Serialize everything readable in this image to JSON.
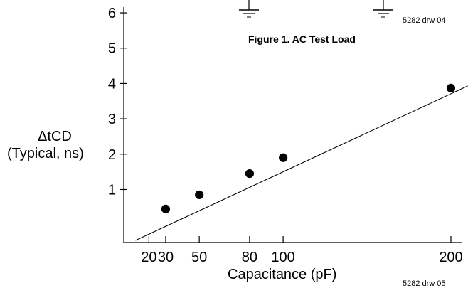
{
  "figure_caption": "Figure 1. AC Test Load",
  "drawing_ref_top": "5282 drw 04",
  "drawing_ref_bottom": "5282 drw 05",
  "chart_data": {
    "type": "scatter",
    "xlabel": "Capacitance (pF)",
    "ylabel_line1": "ΔtCD",
    "ylabel_line2": "(Typical, ns)",
    "xlim": [
      5,
      210
    ],
    "ylim": [
      -0.5,
      6.3
    ],
    "x_ticks": [
      20,
      30,
      50,
      80,
      100,
      200
    ],
    "y_ticks": [
      1,
      2,
      3,
      4,
      5,
      6
    ],
    "points": [
      {
        "x": 30,
        "y": 0.45
      },
      {
        "x": 50,
        "y": 0.85
      },
      {
        "x": 80,
        "y": 1.45
      },
      {
        "x": 100,
        "y": 1.9
      },
      {
        "x": 200,
        "y": 3.87
      }
    ],
    "trend_line": {
      "x": [
        12,
        210
      ],
      "y": [
        -0.44,
        3.93
      ]
    }
  }
}
